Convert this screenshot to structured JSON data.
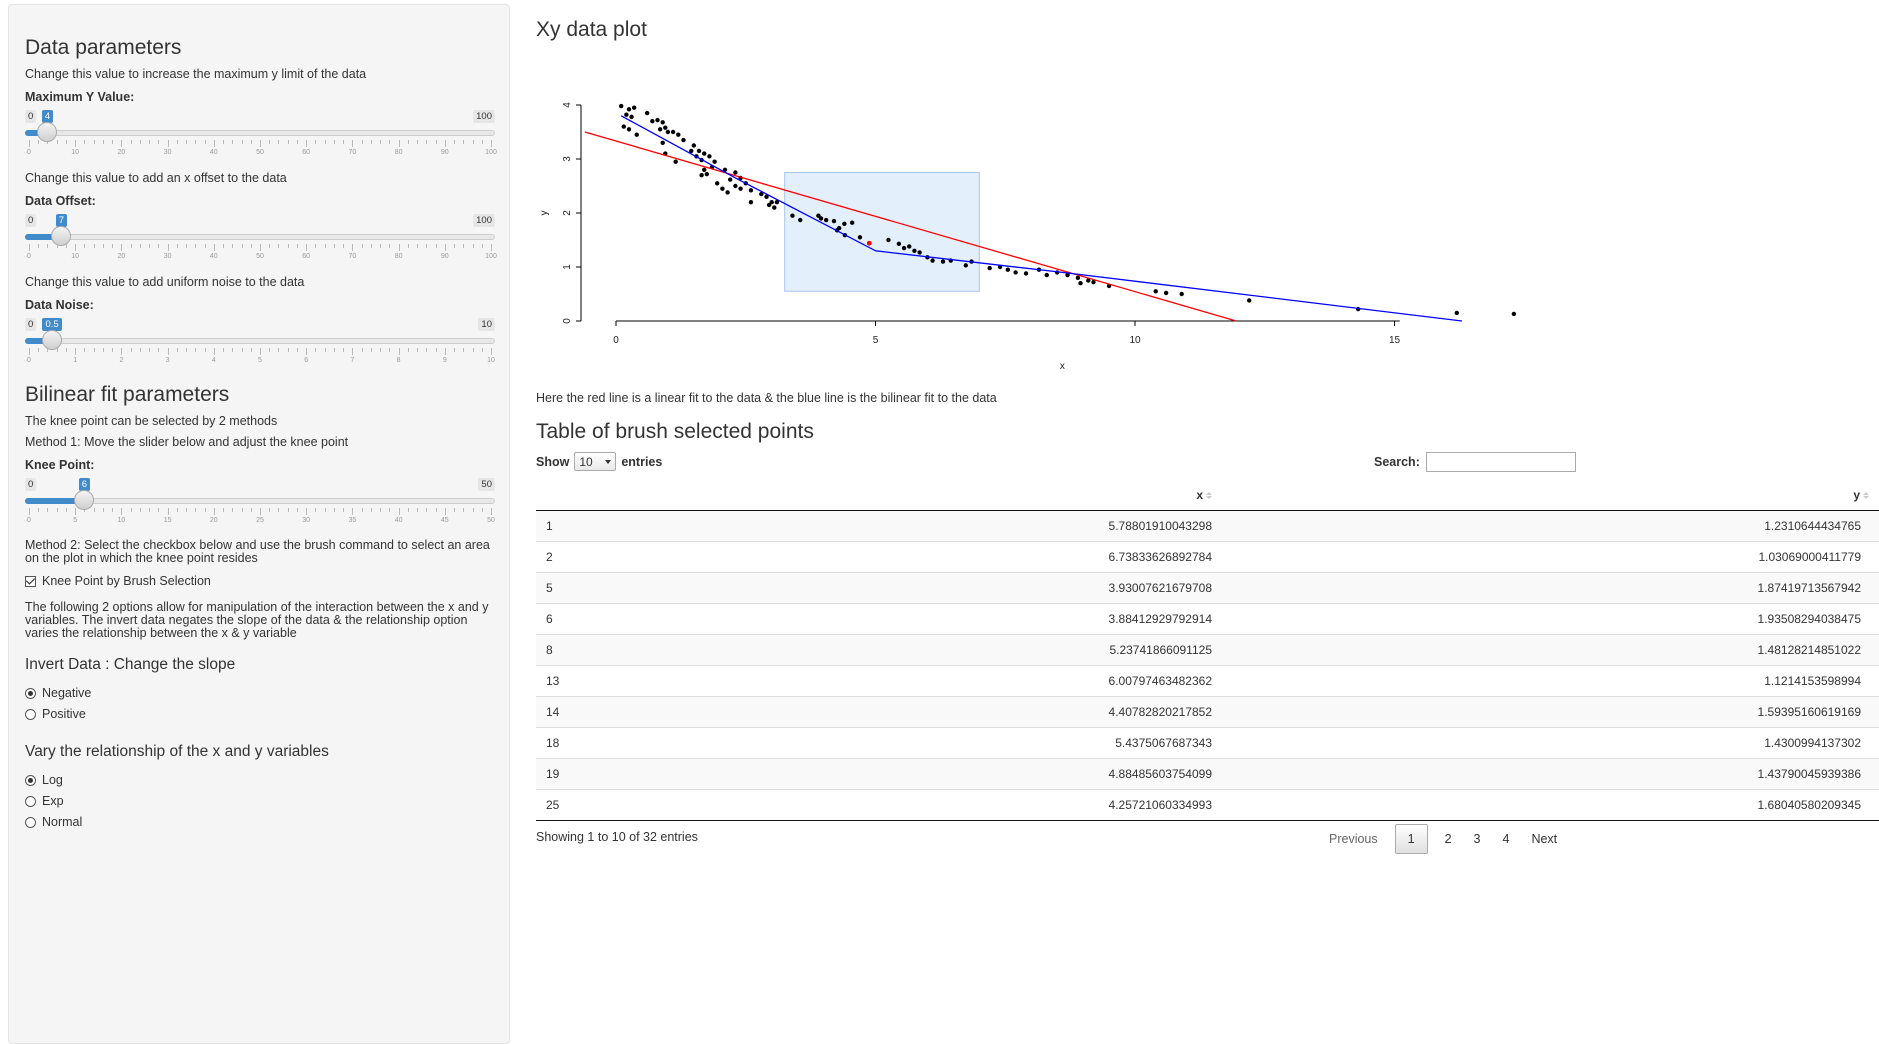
{
  "sidebar": {
    "data_heading": "Data parameters",
    "max_y": {
      "desc": "Change this value to increase the maximum y limit of the data",
      "label": "Maximum Y Value:",
      "min": 0,
      "max": 100,
      "value": 4,
      "ticks": [
        0,
        10,
        20,
        30,
        40,
        50,
        60,
        70,
        80,
        90,
        100
      ]
    },
    "offset": {
      "desc": "Change this value to add an x offset to the data",
      "label": "Data Offset:",
      "min": 0,
      "max": 100,
      "value": 7,
      "ticks": [
        0,
        10,
        20,
        30,
        40,
        50,
        60,
        70,
        80,
        90,
        100
      ]
    },
    "noise": {
      "desc": "Change this value to add uniform noise to the data",
      "label": "Data Noise:",
      "min": 0,
      "max": 10,
      "value": 0.5,
      "ticks": [
        0,
        1,
        2,
        3,
        4,
        5,
        6,
        7,
        8,
        9,
        10
      ]
    },
    "bilinear_heading": "Bilinear fit parameters",
    "knee_intro": "The knee point can be selected by 2 methods",
    "method1": "Method 1: Move the slider below and adjust the knee point",
    "knee": {
      "label": "Knee Point:",
      "min": 0,
      "max": 50,
      "value": 6,
      "ticks": [
        0,
        5,
        10,
        15,
        20,
        25,
        30,
        35,
        40,
        45,
        50
      ]
    },
    "method2": "Method 2: Select the checkbox below and use the brush command to select an area on the plot in which the knee point resides",
    "brush_checkbox": {
      "label": "Knee Point by Brush Selection",
      "checked": true
    },
    "options_desc": "The following 2 options allow for manipulation of the interaction between the x and y variables. The invert data negates the slope of the data & the relationship option varies the relationship between the x & y variable",
    "invert": {
      "heading": "Invert Data : Change the slope",
      "options": [
        "Negative",
        "Positive"
      ],
      "selected": 0
    },
    "relationship": {
      "heading": "Vary the relationship of the x and y variables",
      "options": [
        "Log",
        "Exp",
        "Normal"
      ],
      "selected": 0
    }
  },
  "main": {
    "plot_title": "Xy data plot",
    "plot_caption": "Here the red line is a linear fit to the data & the blue line is the bilinear fit to the data",
    "table_title": "Table of brush selected points",
    "show_label": "Show",
    "entries_label": "entries",
    "page_length": "10",
    "search_label": "Search:",
    "columns": [
      "",
      "x",
      "y"
    ],
    "rows": [
      [
        "1",
        "5.78801910043298",
        "1.2310644434765"
      ],
      [
        "2",
        "6.73833626892784",
        "1.03069000411779"
      ],
      [
        "5",
        "3.93007621679708",
        "1.87419713567942"
      ],
      [
        "6",
        "3.88412929792914",
        "1.93508294038475"
      ],
      [
        "8",
        "5.23741866091125",
        "1.48128214851022"
      ],
      [
        "13",
        "6.00797463482362",
        "1.1214153598994"
      ],
      [
        "14",
        "4.40782820217852",
        "1.59395160619169"
      ],
      [
        "18",
        "5.4375067687343",
        "1.4300994137302"
      ],
      [
        "19",
        "4.88485603754099",
        "1.43790045939386"
      ],
      [
        "25",
        "4.25721060334993",
        "1.68040580209345"
      ]
    ],
    "info": "Showing 1 to 10 of 32 entries",
    "pager": {
      "previous": "Previous",
      "pages": [
        "1",
        "2",
        "3",
        "4"
      ],
      "current": "1",
      "next": "Next"
    }
  },
  "chart_data": {
    "type": "scatter",
    "xlabel": "x",
    "ylabel": "y",
    "xlim": [
      0,
      17.5
    ],
    "ylim": [
      0,
      4
    ],
    "xticks": [
      0,
      5,
      10,
      15
    ],
    "yticks": [
      0,
      1,
      2,
      3,
      4
    ],
    "grid": false,
    "points": [
      [
        0.1,
        3.98
      ],
      [
        0.25,
        3.92
      ],
      [
        0.35,
        3.95
      ],
      [
        0.2,
        3.82
      ],
      [
        0.3,
        3.78
      ],
      [
        0.6,
        3.85
      ],
      [
        0.15,
        3.6
      ],
      [
        0.25,
        3.55
      ],
      [
        0.4,
        3.45
      ],
      [
        0.7,
        3.7
      ],
      [
        0.8,
        3.72
      ],
      [
        0.9,
        3.68
      ],
      [
        0.95,
        3.58
      ],
      [
        0.85,
        3.55
      ],
      [
        1.0,
        3.5
      ],
      [
        1.1,
        3.5
      ],
      [
        1.2,
        3.45
      ],
      [
        0.9,
        3.3
      ],
      [
        1.3,
        3.35
      ],
      [
        1.5,
        3.25
      ],
      [
        1.45,
        3.15
      ],
      [
        1.6,
        3.15
      ],
      [
        1.7,
        3.1
      ],
      [
        1.8,
        3.05
      ],
      [
        1.55,
        3.05
      ],
      [
        1.65,
        2.98
      ],
      [
        1.9,
        2.95
      ],
      [
        0.95,
        3.1
      ],
      [
        1.15,
        2.95
      ],
      [
        1.7,
        2.8
      ],
      [
        1.85,
        2.85
      ],
      [
        1.65,
        2.7
      ],
      [
        1.75,
        2.72
      ],
      [
        2.1,
        2.8
      ],
      [
        2.3,
        2.75
      ],
      [
        2.2,
        2.62
      ],
      [
        2.4,
        2.65
      ],
      [
        1.95,
        2.55
      ],
      [
        2.3,
        2.5
      ],
      [
        2.4,
        2.45
      ],
      [
        2.5,
        2.55
      ],
      [
        2.6,
        2.42
      ],
      [
        2.15,
        2.38
      ],
      [
        2.05,
        2.45
      ],
      [
        2.8,
        2.35
      ],
      [
        2.9,
        2.3
      ],
      [
        3.0,
        2.2
      ],
      [
        3.1,
        2.2
      ],
      [
        3.05,
        2.1
      ],
      [
        2.95,
        2.15
      ],
      [
        2.6,
        2.2
      ],
      [
        3.4,
        1.95
      ],
      [
        3.55,
        1.87
      ],
      [
        3.9,
        1.95
      ],
      [
        3.95,
        1.9
      ],
      [
        4.05,
        1.87
      ],
      [
        4.2,
        1.85
      ],
      [
        4.4,
        1.8
      ],
      [
        4.55,
        1.82
      ],
      [
        4.26,
        1.68
      ],
      [
        4.41,
        1.59
      ],
      [
        4.3,
        1.72
      ],
      [
        4.7,
        1.55
      ],
      [
        4.88,
        1.44
      ],
      [
        5.25,
        1.5
      ],
      [
        5.45,
        1.43
      ],
      [
        5.55,
        1.35
      ],
      [
        5.65,
        1.38
      ],
      [
        5.75,
        1.3
      ],
      [
        5.85,
        1.27
      ],
      [
        6.0,
        1.18
      ],
      [
        6.1,
        1.12
      ],
      [
        6.3,
        1.1
      ],
      [
        6.45,
        1.12
      ],
      [
        6.74,
        1.03
      ],
      [
        6.85,
        1.1
      ],
      [
        7.2,
        0.98
      ],
      [
        7.4,
        1.0
      ],
      [
        7.55,
        0.95
      ],
      [
        7.7,
        0.9
      ],
      [
        7.9,
        0.88
      ],
      [
        8.15,
        0.95
      ],
      [
        8.3,
        0.85
      ],
      [
        8.5,
        0.9
      ],
      [
        8.7,
        0.85
      ],
      [
        8.9,
        0.8
      ],
      [
        9.1,
        0.75
      ],
      [
        8.95,
        0.7
      ],
      [
        9.2,
        0.72
      ],
      [
        9.5,
        0.65
      ],
      [
        10.4,
        0.55
      ],
      [
        10.6,
        0.52
      ],
      [
        10.9,
        0.5
      ],
      [
        12.2,
        0.38
      ],
      [
        14.3,
        0.22
      ],
      [
        16.2,
        0.15
      ],
      [
        17.3,
        0.13
      ]
    ],
    "highlight_point": [
      4.88,
      1.44
    ],
    "linear_fit": {
      "color": "#ff0000",
      "from": [
        -0.6,
        3.5
      ],
      "to": [
        11.95,
        0.0
      ]
    },
    "bilinear_fit": {
      "color": "#0000ff",
      "points": [
        [
          0.1,
          3.8
        ],
        [
          2.3,
          2.65
        ],
        [
          5.0,
          1.3
        ],
        [
          8.6,
          0.9
        ],
        [
          16.3,
          0.0
        ]
      ]
    },
    "brush": {
      "x": [
        3.25,
        7.0
      ],
      "y": [
        0.55,
        2.75
      ]
    }
  }
}
